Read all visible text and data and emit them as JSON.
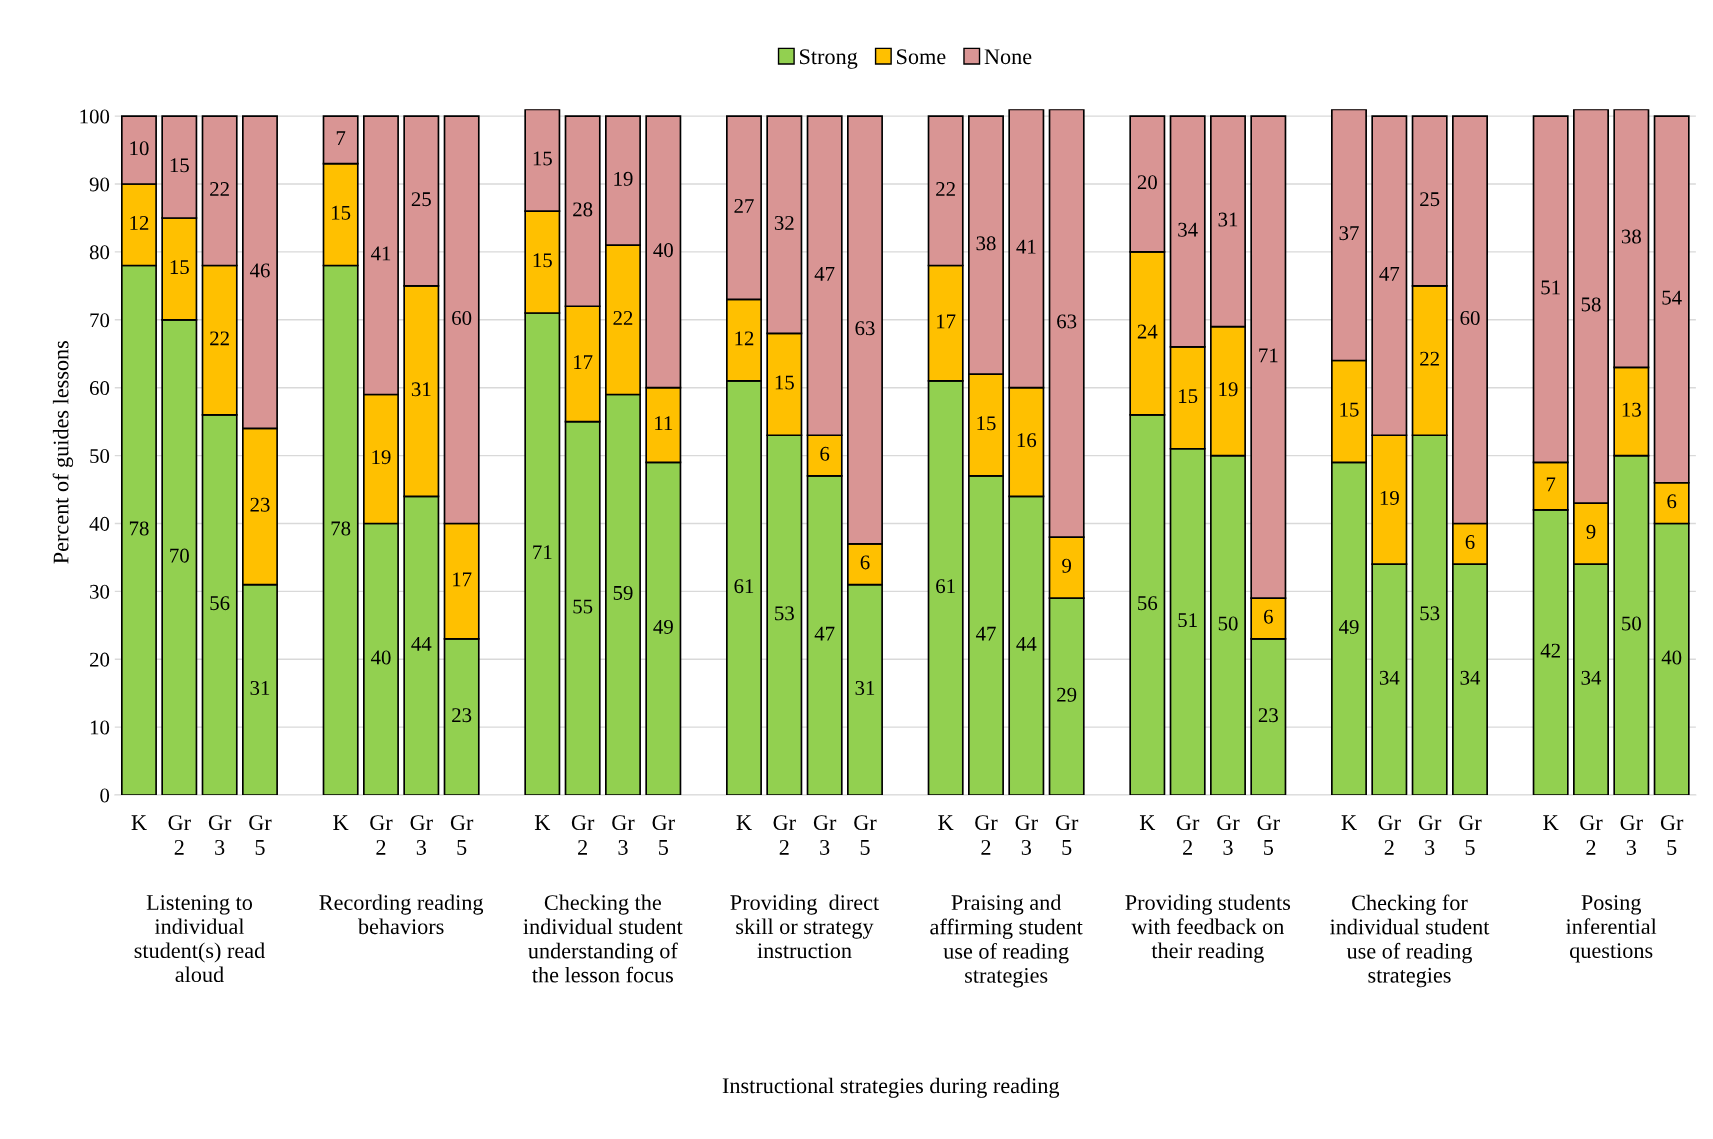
{
  "chart_data": {
    "type": "bar",
    "stacked": true,
    "ylabel": "Percent of guides lessons",
    "categories": [
      "K",
      "Gr\n2",
      "Gr\n3",
      "Gr\n5",
      null,
      "K",
      "Gr\n2",
      "Gr\n3",
      "Gr\n5",
      null,
      "K",
      "Gr\n2",
      "Gr\n3",
      "Gr\n5",
      null,
      "K",
      "Gr\n2",
      "Gr\n3",
      "Gr\n5",
      null,
      "K",
      "Gr\n2",
      "Gr\n3",
      "Gr\n5",
      null,
      "K",
      "Gr\n2",
      "Gr\n3",
      "Gr\n5",
      null,
      "K",
      "Gr\n2",
      "Gr\n3",
      "Gr\n5",
      null,
      "K",
      "Gr\n2",
      "Gr\n3",
      "Gr\n5"
    ],
    "series": [
      {
        "name": "Strong",
        "color": "#92d050",
        "values": [
          78,
          70,
          56,
          31,
          null,
          78,
          40,
          44,
          23,
          null,
          71,
          55,
          59,
          49,
          null,
          61,
          53,
          47,
          31,
          null,
          61,
          47,
          44,
          29,
          null,
          56,
          51,
          50,
          23,
          null,
          49,
          34,
          53,
          34,
          null,
          42,
          34,
          50,
          40
        ]
      },
      {
        "name": "Some",
        "color": "#ffc000",
        "values": [
          12,
          15,
          22,
          23,
          null,
          15,
          19,
          31,
          17,
          null,
          15,
          17,
          22,
          11,
          null,
          12,
          15,
          6,
          6,
          null,
          17,
          15,
          16,
          9,
          null,
          24,
          15,
          19,
          6,
          null,
          15,
          19,
          22,
          6,
          null,
          7,
          9,
          13,
          6
        ]
      },
      {
        "name": "None",
        "color": "#d99594",
        "values": [
          10,
          15,
          22,
          46,
          null,
          7,
          41,
          25,
          60,
          null,
          15,
          28,
          19,
          40,
          null,
          27,
          32,
          47,
          63,
          null,
          22,
          38,
          41,
          63,
          null,
          20,
          34,
          31,
          71,
          null,
          37,
          47,
          25,
          60,
          null,
          51,
          58,
          38,
          54
        ]
      }
    ],
    "annotations": [
      "Listening to\nindividual\nstudent(s) read\naloud",
      "Recording reading\nbehaviors",
      "Checking the\nindividual student\nunderstanding of\nthe lesson focus",
      "Providing  direct\nskill or strategy\ninstruction",
      "Praising and\naffirming student\nuse of reading\nstrategies",
      "Providing students\nwith feedback on\ntheir reading",
      "Checking for\nindividual student\nuse of reading\nstrategies",
      "Posing\ninferential\nquestions",
      "Instructional strategies during reading"
    ],
    "ylim": [
      0,
      101
    ],
    "yticks": [
      0,
      10,
      20,
      30,
      40,
      50,
      60,
      70,
      80,
      90,
      100
    ],
    "grid": "y",
    "legend": "top",
    "data_labels": true
  }
}
